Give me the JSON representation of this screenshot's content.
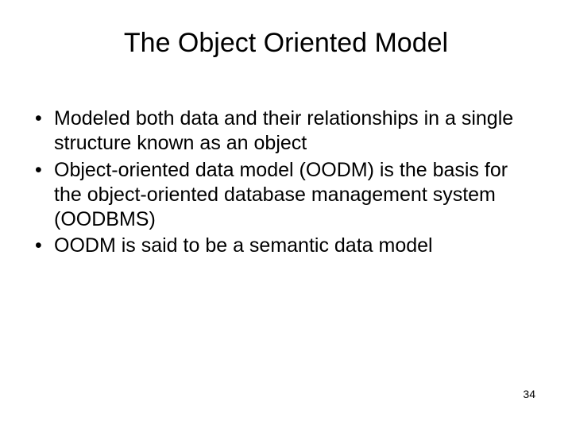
{
  "slide": {
    "title": "The Object Oriented Model",
    "bullets": [
      "Modeled both data and their relationships in a single structure known as an object",
      "Object-oriented data model (OODM) is the basis for the object-oriented database management system (OODBMS)",
      "OODM is said to be a semantic data model"
    ],
    "page_number": "34"
  },
  "style": {
    "background_color": "#ffffff",
    "text_color": "#000000",
    "title_fontsize": 34,
    "body_fontsize": 25,
    "page_number_fontsize": 14,
    "font_family": "Arial"
  }
}
